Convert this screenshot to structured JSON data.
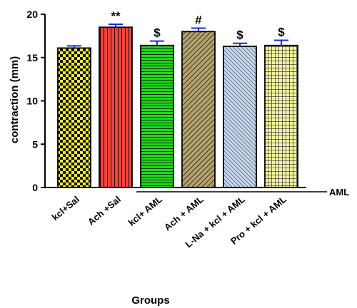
{
  "chart_data": {
    "type": "bar",
    "categories": [
      "kcl+Sal",
      "Ach +Sal",
      "kcl+ AML",
      "Ach + AML",
      "L-Na + kcl + AML",
      "Pro + kcl + AML"
    ],
    "values": [
      16.1,
      18.5,
      16.4,
      18.0,
      16.3,
      16.4
    ],
    "errors": [
      0.25,
      0.35,
      0.5,
      0.4,
      0.35,
      0.6
    ],
    "significance": [
      "",
      "**",
      "$",
      "#",
      "$",
      "$"
    ],
    "colors": [
      "#f2ee2a",
      "#f0443c",
      "#25d41d",
      "#b5a36f",
      "#c9d9ec",
      "#fafa9e"
    ],
    "patterns": [
      "checker",
      "vertical-lines",
      "horizontal-lines",
      "diagonal-lines",
      "diagonal-lines",
      "grid"
    ],
    "error_bar_color": "#1a2ad8",
    "xlabel": "Groups",
    "ylabel": "contraction (mm)",
    "ylim": [
      0,
      20
    ],
    "yticks": [
      0,
      5,
      10,
      15,
      20
    ],
    "group_bracket": {
      "label": "AML",
      "from_category": 2,
      "to_category": 5
    }
  }
}
